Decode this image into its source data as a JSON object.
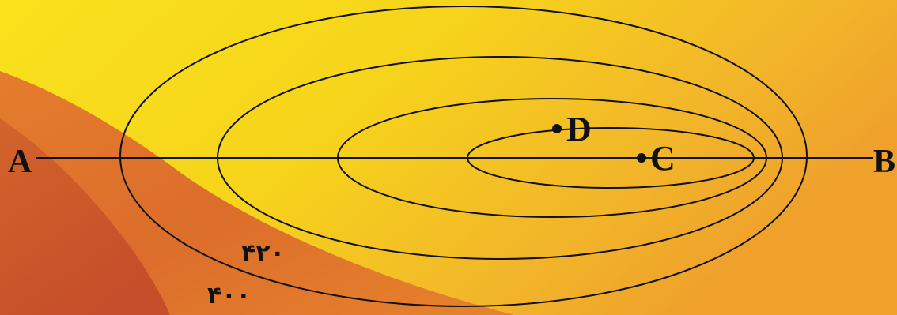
{
  "line": {
    "start_label": "A",
    "end_label": "B"
  },
  "points": {
    "d_label": "D",
    "c_label": "C"
  },
  "contours": {
    "label_inner": "۴۲۰",
    "label_outer": "۴۰۰"
  },
  "colors": {
    "background_yellow": "#f7d21a",
    "background_orange": "#f0a629",
    "wedge_orange": "#e07a2a",
    "wedge_dark": "#c9552a",
    "ink": "#111111"
  }
}
